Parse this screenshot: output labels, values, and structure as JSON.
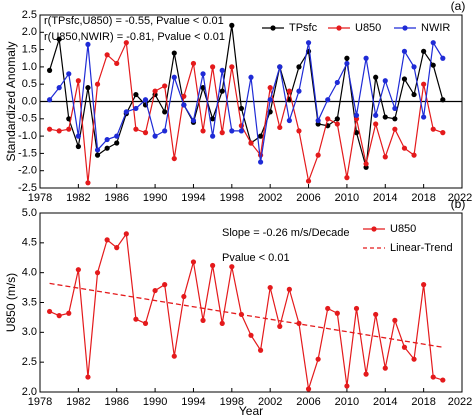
{
  "chart_data": [
    {
      "type": "line",
      "panel_label": "(a)",
      "ylabel": "Standardized Anomaly",
      "annotations": [
        "r(TPsfc,U850) = -0.55, Pvalue < 0.01",
        "r(U850,NWIR) = -0.81, Pvalue < 0.01"
      ],
      "x": [
        1979,
        1980,
        1981,
        1982,
        1983,
        1984,
        1985,
        1986,
        1987,
        1988,
        1989,
        1990,
        1991,
        1992,
        1993,
        1994,
        1995,
        1996,
        1997,
        1998,
        1999,
        2000,
        2001,
        2002,
        2003,
        2004,
        2005,
        2006,
        2007,
        2008,
        2009,
        2010,
        2011,
        2012,
        2013,
        2014,
        2015,
        2016,
        2017,
        2018,
        2019,
        2020
      ],
      "series": [
        {
          "name": "TPsfc",
          "color": "#000000",
          "values": [
            0.9,
            1.8,
            -0.5,
            -1.3,
            0.4,
            -1.55,
            -1.35,
            -1.2,
            -0.35,
            0.2,
            -0.1,
            0.2,
            -0.3,
            1.4,
            -0.1,
            -0.6,
            0.4,
            -0.5,
            0.3,
            2.2,
            -0.2,
            -1.2,
            -1.0,
            -0.3,
            1.0,
            0.05,
            1.0,
            1.45,
            -0.65,
            -0.7,
            -0.5,
            1.25,
            -0.9,
            -1.9,
            0.7,
            -0.45,
            -0.5,
            0.65,
            0.2,
            1.45,
            1.05,
            0.05
          ]
        },
        {
          "name": "U850",
          "color": "#e41a1c",
          "values": [
            -0.8,
            -0.85,
            -0.8,
            0.6,
            -2.35,
            0.5,
            1.35,
            1.1,
            1.7,
            -0.8,
            -0.9,
            0.3,
            0.45,
            -1.65,
            0.15,
            1.1,
            -0.85,
            1.0,
            -0.9,
            1.0,
            -0.7,
            -1.2,
            -1.55,
            0.4,
            -0.75,
            0.3,
            -0.85,
            -2.3,
            -1.55,
            -0.5,
            -0.65,
            -2.2,
            -0.5,
            -1.8,
            -0.65,
            -1.6,
            -0.8,
            -1.35,
            -1.55,
            0.5,
            -0.8,
            -0.9
          ]
        },
        {
          "name": "NWIR",
          "color": "#1f2bd6",
          "values": [
            0.05,
            0.4,
            0.8,
            -1.0,
            1.65,
            -1.4,
            -1.1,
            -1.0,
            -0.3,
            -0.2,
            0.05,
            -1.0,
            -0.85,
            0.7,
            -0.1,
            -0.55,
            0.8,
            -1.0,
            0.9,
            -0.85,
            -0.85,
            0.7,
            -1.75,
            0.05,
            1.0,
            -0.55,
            0.3,
            1.7,
            -0.55,
            0.05,
            0.55,
            1.1,
            -0.4,
            1.25,
            -0.4,
            0.6,
            -0.2,
            1.45,
            1.0,
            -0.45,
            1.7,
            1.25
          ]
        }
      ],
      "xlim": [
        1978,
        2022
      ],
      "xticks": [
        1978,
        1982,
        1986,
        1990,
        1994,
        1998,
        2002,
        2006,
        2010,
        2014,
        2018,
        2022
      ],
      "ylim": [
        -2.5,
        2.5
      ],
      "yticks": [
        -2.5,
        {
          "value": -2,
          "label": "-2.0"
        },
        -1.5,
        {
          "value": -1,
          "label": "-1.0"
        },
        -0.5,
        {
          "value": 0,
          "label": "0.0"
        },
        0.5,
        {
          "value": 1,
          "label": "1.0"
        },
        1.5,
        {
          "value": 2,
          "label": "2.0"
        },
        2.5
      ],
      "legend": "upper right"
    },
    {
      "type": "line",
      "panel_label": "(b)",
      "ylabel": "U850 (m/s)",
      "xlabel": "Year",
      "annotations": [
        "Slope = -0.26 m/s/Decade",
        "Pvalue < 0.01"
      ],
      "x": [
        1979,
        1980,
        1981,
        1982,
        1983,
        1984,
        1985,
        1986,
        1987,
        1988,
        1989,
        1990,
        1991,
        1992,
        1993,
        1994,
        1995,
        1996,
        1997,
        1998,
        1999,
        2000,
        2001,
        2002,
        2003,
        2004,
        2005,
        2006,
        2007,
        2008,
        2009,
        2010,
        2011,
        2012,
        2013,
        2014,
        2015,
        2016,
        2017,
        2018,
        2019,
        2020
      ],
      "series": [
        {
          "name": "U850",
          "color": "#e41a1c",
          "values": [
            3.35,
            3.28,
            3.32,
            4.05,
            2.25,
            4.0,
            4.55,
            4.42,
            4.65,
            3.22,
            3.15,
            3.7,
            3.8,
            2.6,
            3.6,
            4.18,
            3.2,
            4.12,
            3.15,
            4.1,
            3.3,
            2.95,
            2.7,
            3.75,
            3.1,
            3.72,
            3.15,
            2.05,
            2.55,
            3.4,
            3.32,
            2.1,
            3.4,
            2.3,
            3.3,
            2.4,
            3.2,
            2.75,
            2.55,
            3.8,
            2.25,
            2.2
          ]
        },
        {
          "name": "Linear-Trend",
          "color": "#e41a1c",
          "style": "dashed",
          "x": [
            1979,
            2020
          ],
          "values": [
            3.82,
            2.75
          ]
        }
      ],
      "xlim": [
        1978,
        2022
      ],
      "xticks": [
        1978,
        1982,
        1986,
        1990,
        1994,
        1998,
        2002,
        2006,
        2010,
        2014,
        2018,
        2022
      ],
      "ylim": [
        2,
        5
      ],
      "yticks": [
        {
          "value": 2,
          "label": "2.0"
        },
        2.5,
        {
          "value": 3,
          "label": "3.0"
        },
        3.5,
        {
          "value": 4,
          "label": "4.0"
        },
        4.5,
        {
          "value": 5,
          "label": "5.0"
        }
      ],
      "legend": "upper right"
    }
  ]
}
